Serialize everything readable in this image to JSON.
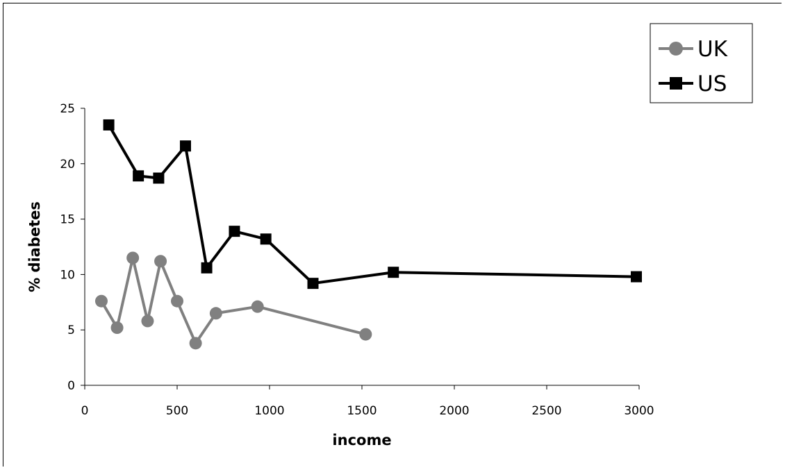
{
  "chart_data": {
    "type": "line",
    "xlabel": "income",
    "ylabel": "% diabetes",
    "xlim": [
      0,
      3000
    ],
    "ylim": [
      0,
      25
    ],
    "xticks": [
      0,
      500,
      1000,
      1500,
      2000,
      2500,
      3000
    ],
    "yticks": [
      0,
      5,
      10,
      15,
      20,
      25
    ],
    "grid": false,
    "legend_position": "top-right",
    "series": [
      {
        "name": "UK",
        "color": "#808080",
        "marker": "circle",
        "x": [
          90,
          175,
          260,
          340,
          410,
          500,
          600,
          710,
          935,
          1520
        ],
        "y": [
          7.6,
          5.2,
          11.5,
          5.8,
          11.2,
          7.6,
          3.8,
          6.5,
          7.1,
          4.6
        ]
      },
      {
        "name": "US",
        "color": "#000000",
        "marker": "square",
        "x": [
          130,
          290,
          400,
          545,
          660,
          810,
          980,
          1235,
          1670,
          2985
        ],
        "y": [
          23.5,
          18.9,
          18.7,
          21.6,
          10.6,
          13.9,
          13.2,
          9.2,
          10.2,
          9.8
        ]
      }
    ]
  }
}
